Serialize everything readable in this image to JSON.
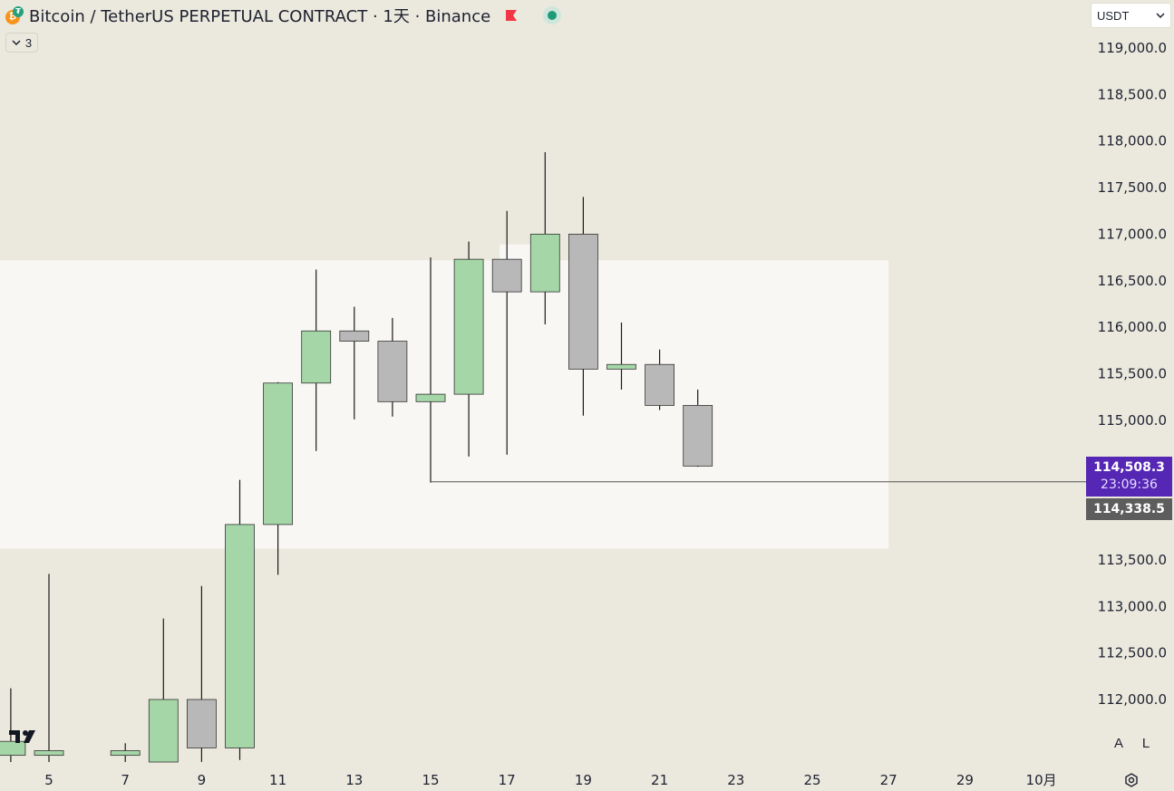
{
  "header": {
    "symbol_title": "Bitcoin / TetherUS PERPETUAL CONTRACT · 1天 · Binance",
    "indicators_count": "3",
    "currency": "USDT",
    "icons": [
      "bitcoin-tether-icon",
      "flag-icon",
      "market-status-icon",
      "chevron-down-icon"
    ]
  },
  "price_tags": {
    "current_price": "114,508.3",
    "countdown": "23:09:36",
    "level_price": "114,338.5"
  },
  "scale_buttons": {
    "auto": "A",
    "log": "L"
  },
  "colors": {
    "up_body": "#a5d6a7",
    "down_body": "#b8b8b8",
    "zone": "#f8f7f3",
    "current_tag": "#5627b4",
    "level_tag": "#5d5d5d"
  },
  "chart_data": {
    "type": "candlestick",
    "x_tick_labels": [
      {
        "day": 5,
        "label": "5"
      },
      {
        "day": 7,
        "label": "7"
      },
      {
        "day": 9,
        "label": "9"
      },
      {
        "day": 11,
        "label": "11"
      },
      {
        "day": 13,
        "label": "13"
      },
      {
        "day": 15,
        "label": "15"
      },
      {
        "day": 17,
        "label": "17"
      },
      {
        "day": 19,
        "label": "19"
      },
      {
        "day": 21,
        "label": "21"
      },
      {
        "day": 23,
        "label": "23"
      },
      {
        "day": 25,
        "label": "25"
      },
      {
        "day": 27,
        "label": "27"
      },
      {
        "day": 29,
        "label": "29"
      },
      {
        "day": 31,
        "label": "10月"
      }
    ],
    "y_tick_labels": [
      "119,000.0",
      "118,500.0",
      "118,000.0",
      "117,500.0",
      "117,000.0",
      "116,500.0",
      "116,000.0",
      "115,500.0",
      "115,000.0",
      "113,500.0",
      "113,000.0",
      "112,500.0",
      "112,000.0"
    ],
    "y_ticks": [
      119000,
      118500,
      118000,
      117500,
      117000,
      116500,
      116000,
      115500,
      115000,
      113500,
      113000,
      112500,
      112000
    ],
    "ylim": [
      111500,
      119350
    ],
    "xlim": [
      3.5,
      32.5
    ],
    "candles": [
      {
        "day": 4,
        "open": 111400,
        "high": 112120,
        "low": 111000,
        "close": 111550
      },
      {
        "day": 5,
        "open": 111400,
        "high": 113350,
        "low": 111000,
        "close": 111450
      },
      {
        "day": 7,
        "open": 111400,
        "high": 111530,
        "low": 111000,
        "close": 111450
      },
      {
        "day": 8,
        "open": 111050,
        "high": 112870,
        "low": 111000,
        "close": 112000
      },
      {
        "day": 9,
        "open": 112000,
        "high": 113220,
        "low": 111330,
        "close": 111480
      },
      {
        "day": 10,
        "open": 111480,
        "high": 114360,
        "low": 111350,
        "close": 113880
      },
      {
        "day": 11,
        "open": 113880,
        "high": 115410,
        "low": 113340,
        "close": 115400
      },
      {
        "day": 12,
        "open": 115400,
        "high": 116620,
        "low": 114670,
        "close": 115960
      },
      {
        "day": 13,
        "open": 115960,
        "high": 116220,
        "low": 115010,
        "close": 115850
      },
      {
        "day": 14,
        "open": 115850,
        "high": 116100,
        "low": 115040,
        "close": 115200
      },
      {
        "day": 15,
        "open": 115200,
        "high": 116750,
        "low": 114330,
        "close": 115280
      },
      {
        "day": 16,
        "open": 115280,
        "high": 116920,
        "low": 114610,
        "close": 116730
      },
      {
        "day": 17,
        "open": 116730,
        "high": 117250,
        "low": 114630,
        "close": 116380
      },
      {
        "day": 18,
        "open": 116380,
        "high": 117880,
        "low": 116030,
        "close": 117000
      },
      {
        "day": 19,
        "open": 117000,
        "high": 117400,
        "low": 115050,
        "close": 115550
      },
      {
        "day": 20,
        "open": 115550,
        "high": 116050,
        "low": 115330,
        "close": 115600
      },
      {
        "day": 21,
        "open": 115600,
        "high": 115760,
        "low": 115110,
        "close": 115160
      },
      {
        "day": 22,
        "open": 115160,
        "high": 115330,
        "low": 114500,
        "close": 114508.3
      }
    ],
    "zone": {
      "top": 116720,
      "bottom": 113620,
      "start_day": 3.5,
      "end_day": 27
    },
    "zone_inner_top": {
      "price": 116890,
      "start_day": 17,
      "end_day": 17.7
    },
    "level_line": {
      "price": 114338.5,
      "start_day": 15
    },
    "current_price": 114508.3,
    "legend": "none",
    "grid": false
  }
}
